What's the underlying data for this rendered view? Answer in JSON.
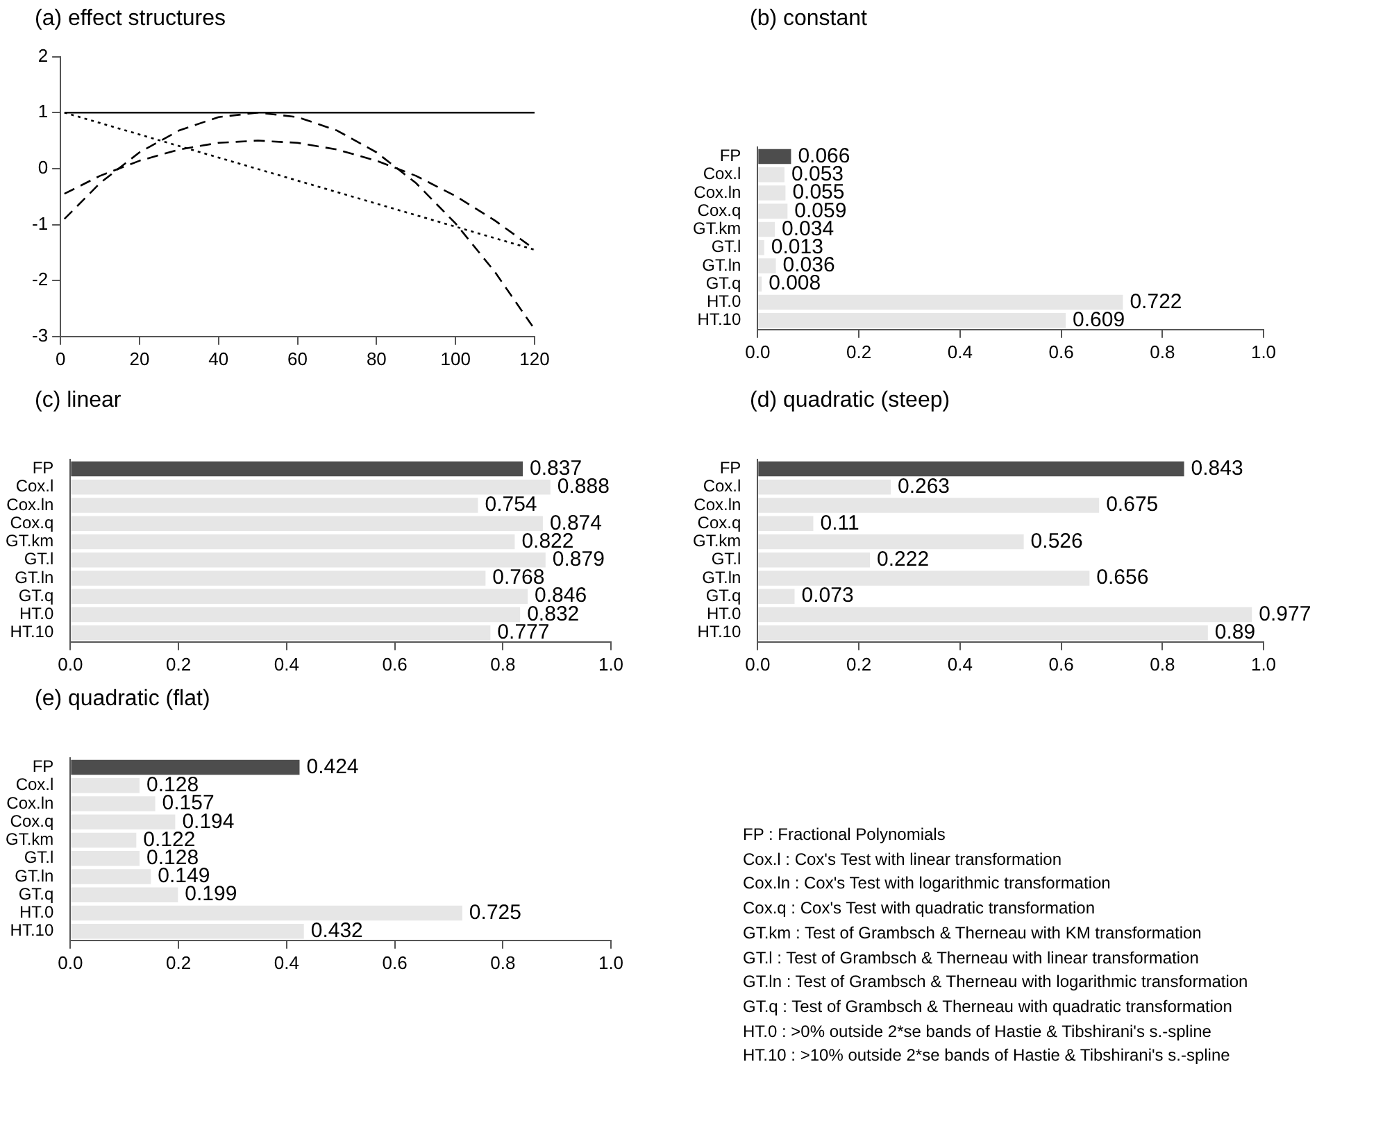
{
  "chart_data": [
    {
      "type": "line",
      "title": "(a)  effect structures",
      "xlim": [
        0,
        120
      ],
      "xticks": [
        0,
        20,
        40,
        60,
        80,
        100,
        120
      ],
      "ylim": [
        -3,
        2
      ],
      "yticks": [
        -3,
        -2,
        -1,
        0,
        1,
        2
      ],
      "grid": false,
      "legend": false,
      "marker": "none",
      "series": [
        {
          "color": "#000000",
          "line_style": "solid",
          "x": [
            1,
            120
          ],
          "values": [
            1,
            1
          ]
        },
        {
          "color": "#000000",
          "line_style": "dotted",
          "x": [
            1,
            120
          ],
          "values": [
            1,
            -1.45
          ]
        },
        {
          "color": "#000000",
          "line_style": "dashed",
          "x": [
            1,
            10,
            20,
            30,
            40,
            50,
            60,
            70,
            80,
            90,
            100,
            110,
            120
          ],
          "values": [
            -0.45,
            -0.13,
            0.14,
            0.34,
            0.46,
            0.5,
            0.46,
            0.34,
            0.14,
            -0.13,
            -0.49,
            -0.93,
            -1.44
          ]
        },
        {
          "color": "#000000",
          "line_style": "dashed",
          "x": [
            1,
            10,
            20,
            30,
            40,
            50,
            60,
            70,
            80,
            90,
            100,
            110,
            120
          ],
          "values": [
            -0.9,
            -0.26,
            0.29,
            0.68,
            0.92,
            1.0,
            0.92,
            0.68,
            0.29,
            -0.26,
            -0.98,
            -1.85,
            -2.87
          ]
        }
      ]
    },
    {
      "type": "bar",
      "orientation": "horizontal",
      "title": "(b)  constant",
      "categories": [
        "FP",
        "Cox.l",
        "Cox.ln",
        "Cox.q",
        "GT.km",
        "GT.l",
        "GT.ln",
        "GT.q",
        "HT.0",
        "HT.10"
      ],
      "values": [
        0.066,
        0.053,
        0.055,
        0.059,
        0.034,
        0.013,
        0.036,
        0.008,
        0.722,
        0.609
      ],
      "colors": [
        "#4d4d4d",
        "#e6e6e6",
        "#e6e6e6",
        "#e6e6e6",
        "#e6e6e6",
        "#e6e6e6",
        "#e6e6e6",
        "#e6e6e6",
        "#e6e6e6",
        "#e6e6e6"
      ],
      "xlim": [
        0,
        1
      ],
      "xticks": [
        {
          "value": 0,
          "label": "0.0"
        },
        {
          "value": 0.2,
          "label": "0.2"
        },
        {
          "value": 0.4,
          "label": "0.4"
        },
        {
          "value": 0.6,
          "label": "0.6"
        },
        {
          "value": 0.8,
          "label": "0.8"
        },
        {
          "value": 1,
          "label": "1.0"
        }
      ],
      "data_labels": true,
      "grid": false,
      "legend": false
    },
    {
      "type": "bar",
      "orientation": "horizontal",
      "title": "(c)  linear",
      "categories": [
        "FP",
        "Cox.l",
        "Cox.ln",
        "Cox.q",
        "GT.km",
        "GT.l",
        "GT.ln",
        "GT.q",
        "HT.0",
        "HT.10"
      ],
      "values": [
        0.837,
        0.888,
        0.754,
        0.874,
        0.822,
        0.879,
        0.768,
        0.846,
        0.832,
        0.777
      ],
      "colors": [
        "#4d4d4d",
        "#e6e6e6",
        "#e6e6e6",
        "#e6e6e6",
        "#e6e6e6",
        "#e6e6e6",
        "#e6e6e6",
        "#e6e6e6",
        "#e6e6e6",
        "#e6e6e6"
      ],
      "xlim": [
        0,
        1
      ],
      "xticks": [
        {
          "value": 0,
          "label": "0.0"
        },
        {
          "value": 0.2,
          "label": "0.2"
        },
        {
          "value": 0.4,
          "label": "0.4"
        },
        {
          "value": 0.6,
          "label": "0.6"
        },
        {
          "value": 0.8,
          "label": "0.8"
        },
        {
          "value": 1,
          "label": "1.0"
        }
      ],
      "data_labels": true,
      "grid": false,
      "legend": false
    },
    {
      "type": "bar",
      "orientation": "horizontal",
      "title": "(d)  quadratic (steep)",
      "categories": [
        "FP",
        "Cox.l",
        "Cox.ln",
        "Cox.q",
        "GT.km",
        "GT.l",
        "GT.ln",
        "GT.q",
        "HT.0",
        "HT.10"
      ],
      "values": [
        0.843,
        0.263,
        0.675,
        0.11,
        0.526,
        0.222,
        0.656,
        0.073,
        0.977,
        0.89
      ],
      "colors": [
        "#4d4d4d",
        "#e6e6e6",
        "#e6e6e6",
        "#e6e6e6",
        "#e6e6e6",
        "#e6e6e6",
        "#e6e6e6",
        "#e6e6e6",
        "#e6e6e6",
        "#e6e6e6"
      ],
      "xlim": [
        0,
        1
      ],
      "xticks": [
        {
          "value": 0,
          "label": "0.0"
        },
        {
          "value": 0.2,
          "label": "0.2"
        },
        {
          "value": 0.4,
          "label": "0.4"
        },
        {
          "value": 0.6,
          "label": "0.6"
        },
        {
          "value": 0.8,
          "label": "0.8"
        },
        {
          "value": 1,
          "label": "1.0"
        }
      ],
      "data_labels": true,
      "grid": false,
      "legend": false
    },
    {
      "type": "bar",
      "orientation": "horizontal",
      "title": "(e)  quadratic (flat)",
      "categories": [
        "FP",
        "Cox.l",
        "Cox.ln",
        "Cox.q",
        "GT.km",
        "GT.l",
        "GT.ln",
        "GT.q",
        "HT.0",
        "HT.10"
      ],
      "values": [
        0.424,
        0.128,
        0.157,
        0.194,
        0.122,
        0.128,
        0.149,
        0.199,
        0.725,
        0.432
      ],
      "colors": [
        "#4d4d4d",
        "#e6e6e6",
        "#e6e6e6",
        "#e6e6e6",
        "#e6e6e6",
        "#e6e6e6",
        "#e6e6e6",
        "#e6e6e6",
        "#e6e6e6",
        "#e6e6e6"
      ],
      "xlim": [
        0,
        1
      ],
      "xticks": [
        {
          "value": 0,
          "label": "0.0"
        },
        {
          "value": 0.2,
          "label": "0.2"
        },
        {
          "value": 0.4,
          "label": "0.4"
        },
        {
          "value": 0.6,
          "label": "0.6"
        },
        {
          "value": 0.8,
          "label": "0.8"
        },
        {
          "value": 1,
          "label": "1.0"
        }
      ],
      "data_labels": true,
      "grid": false,
      "legend": false
    },
    {
      "type": "other",
      "annotations": [
        "FP : Fractional Polynomials",
        "Cox.l : Cox's Test with linear transformation",
        "Cox.ln : Cox's Test with logarithmic transformation",
        "Cox.q : Cox's Test with quadratic transformation",
        "GT.km : Test of Grambsch & Therneau with KM transformation",
        "GT.l : Test of Grambsch & Therneau with linear transformation",
        "GT.ln : Test of Grambsch & Therneau with logarithmic transformation",
        "GT.q : Test of Grambsch & Therneau with quadratic transformation",
        "HT.0 : >0% outside 2*se bands of Hastie & Tibshirani's s.-spline",
        "HT.10 : >10% outside 2*se bands of Hastie & Tibshirani's s.-spline"
      ]
    }
  ]
}
